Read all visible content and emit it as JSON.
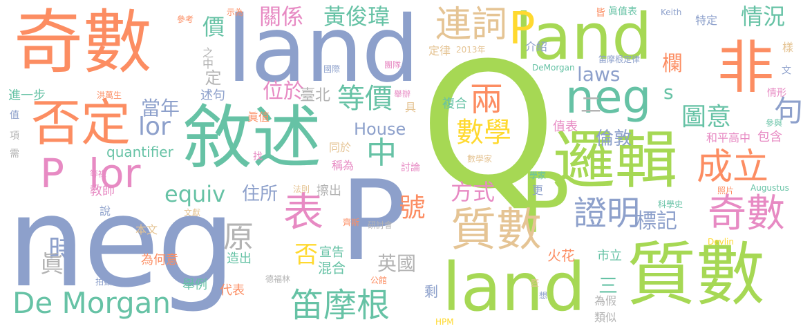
{
  "palette": {
    "orange": "#fc8d62",
    "green": "#a6d854",
    "blue": "#8da0cb",
    "teal": "#66c2a5",
    "pink": "#e78ac3",
    "yellow": "#ffd92f",
    "tan": "#e5c494",
    "gray": "#b3b3b3"
  },
  "words": {
    "w1": "neg",
    "w2": "Q",
    "w3": "land",
    "w4": "奇數",
    "w5": "land",
    "w6": "敘述",
    "w7": "P",
    "w8": "P",
    "w9": "質數",
    "w10": "land",
    "w11": "邏輯",
    "w12": "P",
    "w13": "非",
    "w14": "neg",
    "w15": "否定",
    "w16": "P",
    "w17": "lor",
    "w18": "質數",
    "w19": "連詞",
    "w20": "奇數",
    "w21": "成立",
    "w22": "De Morgan",
    "w23": "笛摩根",
    "w24": "證明",
    "w25": "表",
    "w26": "等價",
    "w27": "數學",
    "w28": "兩",
    "w29": "中",
    "w30": "lor",
    "w31": "equiv",
    "w32": "House",
    "w33": "黃俊瑋",
    "w34": "關係",
    "w35": "情況",
    "w36": "圖意",
    "w37": "句",
    "w38": "laws",
    "w39": "當年",
    "w40": "位於",
    "w41": "方式",
    "w42": "時",
    "w43": "眞",
    "w44": "原",
    "w45": "標記",
    "w46": "號",
    "w47": "英國",
    "w48": "價",
    "w49": "之中",
    "w50": "定",
    "w51": "欄",
    "w52": "二",
    "w53": "s",
    "w54": "住所",
    "w55": "擦出",
    "w56": "述句",
    "w57": "臺北",
    "w58": "眞值",
    "w59": "quantifier",
    "w60": "複合",
    "w61": "倫敦",
    "w62": "值表",
    "w63": "和平高中",
    "w64": "包含",
    "w65": "教師",
    "w66": "進一步",
    "w67": "宣告",
    "w68": "混合",
    "w69": "否",
    "w70": "火花",
    "w71": "市立",
    "w72": "三",
    "w73": "為何意",
    "w74": "造出",
    "w75": "代表",
    "w76": "舉例",
    "w77": "剩",
    "w78": "本文",
    "w79": "說",
    "w80": "為假",
    "w81": "類似",
    "w82": "更",
    "w83": "介紹",
    "w84": "定律",
    "w85": "2013年",
    "w86": "特定",
    "w87": "眞值表",
    "w88": "Keith",
    "w89": "皆",
    "w90": "笛摩根定律",
    "w91": "DeMorgan",
    "w92": "國際",
    "w93": "團隊",
    "w94": "參考",
    "w95": "示為",
    "w96": "樣",
    "w97": "文",
    "w98": "情形",
    "w99": "參與",
    "w100": "值",
    "w101": "洪萬生",
    "w102": "舉辦",
    "w103": "具",
    "w104": "項",
    "w105": "同於",
    "w106": "稱為",
    "w107": "找",
    "w108": "討論",
    "w109": "數學家",
    "w110": "需",
    "w111": "等祿",
    "w112": "法則",
    "w113": "學家",
    "w114": "照片",
    "w115": "Augustus",
    "w116": "科學史",
    "w117": "文獻",
    "w118": "齊斯",
    "w119": "研討會",
    "w120": "公館",
    "w121": "德福林",
    "w122": "拍攝",
    "w123": "想",
    "w124": "暨",
    "w125": "HPM",
    "w126": "Devlin"
  }
}
